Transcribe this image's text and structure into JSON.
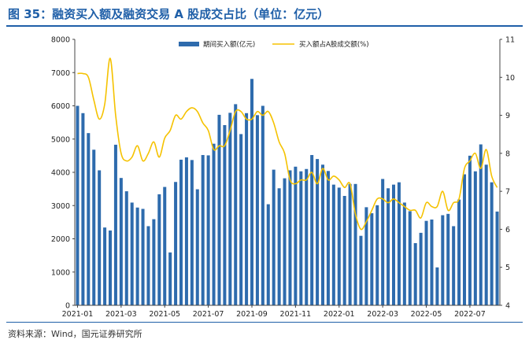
{
  "title": "图 35：融资买入额及融资交易 A 股成交占比（单位：亿元）",
  "source": "资料来源：Wind，国元证券研究所",
  "colors": {
    "bar": "#2e6bad",
    "line": "#f5c200",
    "accent": "#1f5fa8"
  },
  "chart_data": {
    "type": "bar",
    "x_tick_labels": [
      "2021-01",
      "2021-03",
      "2021-05",
      "2021-07",
      "2021-09",
      "2021-11",
      "2022-01",
      "2022-03",
      "2022-05",
      "2022-07"
    ],
    "y_left": {
      "ticks": [
        "0",
        "1000",
        "2000",
        "3000",
        "4000",
        "5000",
        "6000",
        "7000",
        "8000"
      ],
      "lim": [
        0,
        8000
      ]
    },
    "y_right": {
      "ticks": [
        "4",
        "5",
        "6",
        "7",
        "8",
        "9",
        "10",
        "11"
      ],
      "lim": [
        4,
        11
      ]
    },
    "series": [
      {
        "name": "期间买入额(亿元)",
        "type": "bar",
        "values": [
          6000,
          5780,
          5180,
          4680,
          4060,
          2340,
          2250,
          4830,
          3830,
          3430,
          3090,
          2940,
          2900,
          2380,
          2590,
          3340,
          3560,
          1590,
          3710,
          4380,
          4450,
          4370,
          3490,
          4520,
          4510,
          4860,
          5730,
          5420,
          5790,
          6050,
          5150,
          5780,
          6810,
          5720,
          6000,
          3040,
          4080,
          3520,
          3820,
          4060,
          4170,
          4030,
          4100,
          4520,
          4400,
          4230,
          4040,
          3630,
          3540,
          3290,
          3650,
          3650,
          2090,
          2950,
          2770,
          3010,
          3800,
          3520,
          3630,
          3700,
          3090,
          2830,
          1870,
          2180,
          2540,
          2580,
          1140,
          2710,
          2750,
          2380,
          3180,
          3940,
          4500,
          4030,
          4840,
          4230,
          3700,
          2820
        ]
      },
      {
        "name": "买入额占A股成交额(%)",
        "type": "line",
        "values": [
          10.1,
          10.1,
          10.0,
          9.4,
          8.9,
          9.3,
          10.5,
          9.0,
          8.0,
          7.8,
          7.9,
          8.2,
          7.8,
          8.0,
          8.3,
          7.9,
          8.4,
          8.6,
          9.0,
          8.9,
          9.1,
          9.2,
          9.1,
          8.8,
          8.6,
          8.1,
          8.2,
          8.2,
          8.6,
          9.1,
          9.1,
          8.9,
          8.9,
          9.1,
          9.0,
          9.1,
          8.8,
          8.3,
          8.0,
          7.3,
          7.2,
          7.3,
          7.3,
          7.5,
          7.2,
          7.6,
          7.3,
          7.4,
          7.3,
          7.1,
          7.2,
          6.4,
          6.0,
          6.2,
          6.5,
          6.8,
          6.8,
          6.7,
          6.8,
          6.7,
          6.6,
          6.5,
          6.5,
          6.3,
          6.7,
          6.6,
          6.6,
          7.0,
          6.5,
          6.7,
          6.8,
          7.6,
          7.8,
          8.0,
          7.6,
          8.1,
          7.4,
          7.1
        ]
      }
    ]
  }
}
